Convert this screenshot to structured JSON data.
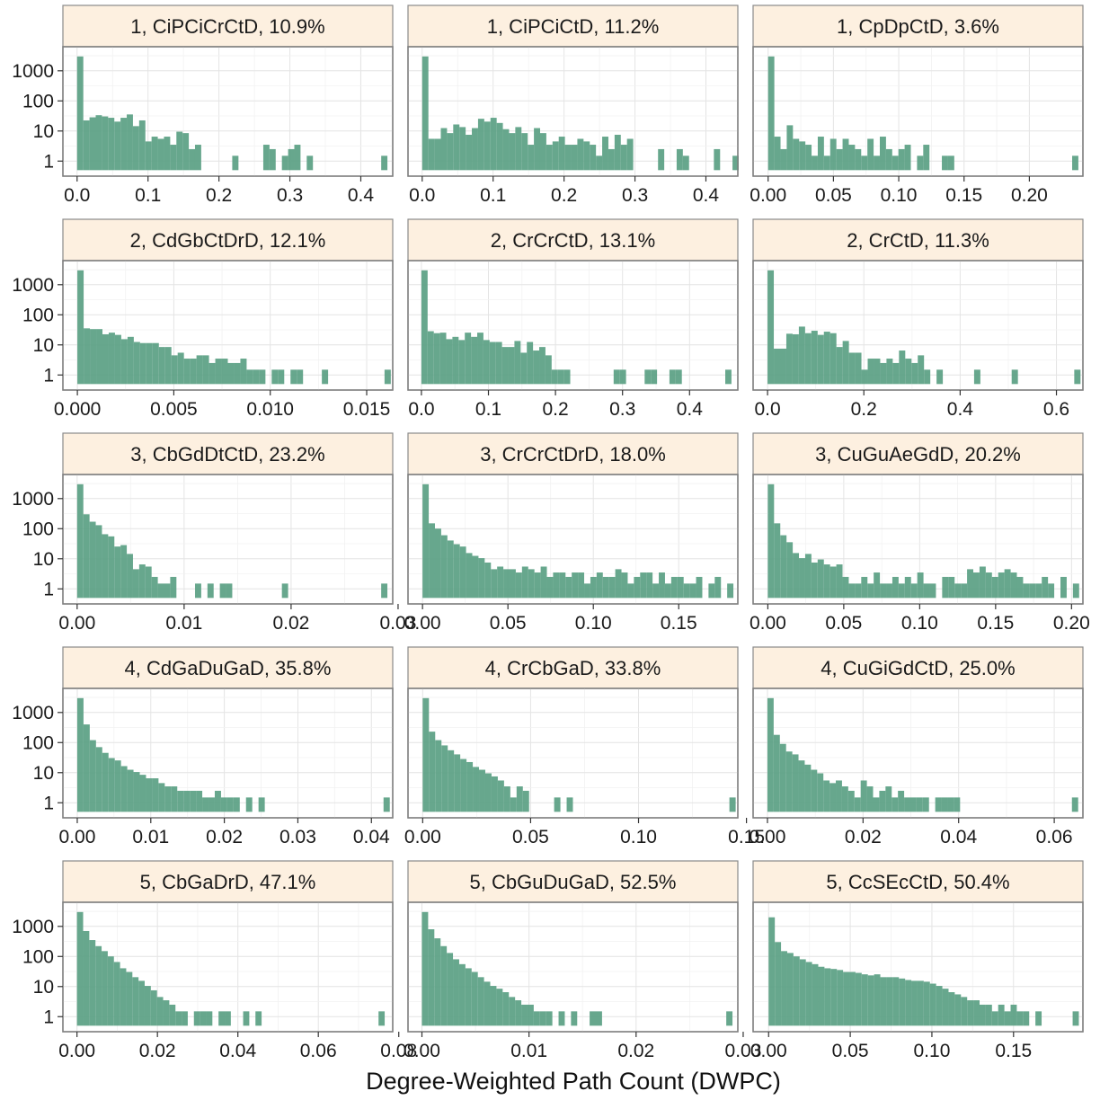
{
  "chart_data": {
    "type": "bar",
    "chart_kind": "faceted histogram",
    "xlabel": "Degree-Weighted Path Count (DWPC)",
    "ylabel": "",
    "y_scale": "log10",
    "y_ticks": [
      1,
      10,
      100,
      1000
    ],
    "y_tick_labels": [
      "1",
      "10",
      "100",
      "1000"
    ],
    "color": "#5aa083",
    "strip_color": "#fdf0e0",
    "grid": true,
    "panels": [
      {
        "title": "1, CiPCiCrCtD, 10.9%",
        "xlim": [
          -0.02,
          0.445
        ],
        "xticks": [
          0.0,
          0.1,
          0.2,
          0.3,
          0.4
        ],
        "xtick_labels": [
          "0.0",
          "0.1",
          "0.2",
          "0.3",
          "0.4"
        ],
        "bin_width": 0.00875,
        "counts": [
          3000,
          22,
          28,
          33,
          30,
          27,
          20,
          27,
          35,
          14,
          22,
          4,
          6,
          5,
          6,
          3,
          9,
          8,
          2,
          3,
          0,
          0,
          0,
          0,
          0,
          1,
          0,
          0,
          0,
          0,
          3,
          2,
          0,
          1,
          2,
          3,
          0,
          1,
          0,
          0,
          0,
          0,
          0,
          0,
          0,
          0,
          0,
          0,
          0,
          1
        ]
      },
      {
        "title": "1, CiPCiCtD, 11.2%",
        "xlim": [
          -0.02,
          0.445
        ],
        "xticks": [
          0.0,
          0.1,
          0.2,
          0.3,
          0.4
        ],
        "xtick_labels": [
          "0.0",
          "0.1",
          "0.2",
          "0.3",
          "0.4"
        ],
        "bin_width": 0.00875,
        "counts": [
          3000,
          5,
          5,
          12,
          8,
          16,
          13,
          7,
          12,
          25,
          20,
          27,
          18,
          11,
          8,
          13,
          8,
          3,
          12,
          8,
          3,
          4,
          6,
          3,
          3,
          5,
          4,
          3,
          1,
          6,
          2,
          7,
          3,
          5,
          0,
          0,
          0,
          0,
          2,
          0,
          0,
          2,
          1,
          0,
          0,
          0,
          0,
          2,
          0,
          0,
          1
        ]
      },
      {
        "title": "1, CpDpCtD, 3.6%",
        "xlim": [
          -0.0115,
          0.241
        ],
        "xticks": [
          0.0,
          0.05,
          0.1,
          0.15,
          0.2
        ],
        "xtick_labels": [
          "0.00",
          "0.05",
          "0.10",
          "0.15",
          "0.20"
        ],
        "bin_width": 0.00475,
        "counts": [
          3000,
          6,
          2,
          15,
          5,
          4,
          3,
          1,
          6,
          1,
          5,
          2,
          5,
          3,
          2,
          1,
          5,
          1,
          6,
          2,
          1,
          2,
          3,
          0,
          1,
          3,
          0,
          0,
          1,
          1,
          0,
          0,
          0,
          0,
          0,
          0,
          0,
          0,
          0,
          0,
          0,
          0,
          0,
          0,
          0,
          0,
          0,
          0,
          0,
          1
        ]
      },
      {
        "title": "2, CdGbCtDrD, 12.1%",
        "xlim": [
          -0.00075,
          0.01635
        ],
        "xticks": [
          0.0,
          0.005,
          0.01,
          0.015
        ],
        "xtick_labels": [
          "0.000",
          "0.005",
          "0.010",
          "0.015"
        ],
        "bin_width": 0.000325,
        "counts": [
          3000,
          35,
          33,
          33,
          22,
          25,
          21,
          15,
          18,
          12,
          11,
          11,
          11,
          8,
          8,
          4,
          5,
          3,
          3,
          4,
          4,
          2,
          3,
          3,
          2,
          2,
          3,
          1,
          1,
          1,
          0,
          1,
          1,
          0,
          1,
          1,
          0,
          0,
          0,
          1,
          0,
          0,
          0,
          0,
          0,
          0,
          0,
          0,
          0,
          1
        ]
      },
      {
        "title": "2, CrCrCtD, 13.1%",
        "xlim": [
          -0.02,
          0.472
        ],
        "xticks": [
          0.0,
          0.1,
          0.2,
          0.3,
          0.4
        ],
        "xtick_labels": [
          "0.0",
          "0.1",
          "0.2",
          "0.3",
          "0.4"
        ],
        "bin_width": 0.00925,
        "counts": [
          3000,
          28,
          24,
          25,
          15,
          18,
          14,
          25,
          18,
          25,
          14,
          12,
          12,
          8,
          8,
          13,
          5,
          12,
          6,
          8,
          4,
          1,
          1,
          1,
          0,
          0,
          0,
          0,
          0,
          0,
          0,
          1,
          1,
          0,
          0,
          0,
          1,
          1,
          0,
          0,
          1,
          1,
          0,
          0,
          0,
          0,
          0,
          0,
          0,
          1
        ]
      },
      {
        "title": "2, CrCtD, 11.3%",
        "xlim": [
          -0.03,
          0.655
        ],
        "xticks": [
          0.0,
          0.2,
          0.4,
          0.6
        ],
        "xtick_labels": [
          "0.0",
          "0.2",
          "0.4",
          "0.6"
        ],
        "bin_width": 0.013,
        "counts": [
          3000,
          7,
          7,
          23,
          22,
          40,
          24,
          29,
          21,
          27,
          24,
          8,
          13,
          5,
          5,
          1,
          3,
          3,
          2,
          3,
          2,
          6,
          3,
          2,
          4,
          1,
          0,
          1,
          0,
          0,
          0,
          0,
          0,
          1,
          0,
          0,
          0,
          0,
          0,
          1,
          0,
          0,
          0,
          0,
          0,
          0,
          0,
          0,
          0,
          1
        ]
      },
      {
        "title": "3, CbGdDtCtD, 23.2%",
        "xlim": [
          -0.00133,
          0.0295
        ],
        "xticks": [
          0.0,
          0.01,
          0.02,
          0.03
        ],
        "xtick_labels": [
          "0.00",
          "0.01",
          "0.02",
          "0.03"
        ],
        "bin_width": 0.00058,
        "counts": [
          3000,
          300,
          170,
          130,
          65,
          55,
          25,
          28,
          14,
          4,
          6,
          5,
          2,
          1,
          1,
          2,
          0,
          0,
          0,
          1,
          0,
          1,
          0,
          1,
          1,
          0,
          0,
          0,
          0,
          0,
          0,
          0,
          0,
          1,
          0,
          0,
          0,
          0,
          0,
          0,
          0,
          0,
          0,
          0,
          0,
          0,
          0,
          0,
          0,
          1
        ]
      },
      {
        "title": "3, CrCrCtDrD, 18.0%",
        "xlim": [
          -0.0085,
          0.1846
        ],
        "xticks": [
          0.0,
          0.05,
          0.1,
          0.15
        ],
        "xtick_labels": [
          "0.00",
          "0.05",
          "0.10",
          "0.15"
        ],
        "bin_width": 0.00364,
        "counts": [
          3000,
          150,
          100,
          60,
          40,
          30,
          25,
          15,
          12,
          10,
          7,
          4,
          5,
          4,
          4,
          3,
          5,
          4,
          3,
          5,
          2,
          3,
          3,
          2,
          3,
          3,
          1,
          2,
          3,
          2,
          2,
          4,
          3,
          1,
          2,
          3,
          3,
          1,
          3,
          1,
          2,
          2,
          1,
          1,
          2,
          0,
          1,
          2,
          0,
          1
        ]
      },
      {
        "title": "3, CuGuAeGdD, 20.2%",
        "xlim": [
          -0.0097,
          0.2075
        ],
        "xticks": [
          0.0,
          0.05,
          0.1,
          0.15,
          0.2
        ],
        "xtick_labels": [
          "0.00",
          "0.05",
          "0.10",
          "0.15",
          "0.20"
        ],
        "bin_width": 0.0041,
        "counts": [
          3000,
          150,
          60,
          35,
          15,
          10,
          14,
          7,
          9,
          6,
          5,
          6,
          2,
          1,
          1,
          2,
          1,
          3,
          1,
          1,
          2,
          1,
          2,
          1,
          3,
          1,
          1,
          0,
          2,
          2,
          1,
          1,
          4,
          3,
          5,
          3,
          2,
          3,
          4,
          3,
          2,
          1,
          1,
          1,
          2,
          1,
          0,
          2,
          0,
          1
        ]
      },
      {
        "title": "4, CdGaDuGaD, 35.8%",
        "xlim": [
          -0.00195,
          0.0429
        ],
        "xticks": [
          0.0,
          0.01,
          0.02,
          0.03,
          0.04
        ],
        "xtick_labels": [
          "0.00",
          "0.01",
          "0.02",
          "0.03",
          "0.04"
        ],
        "bin_width": 0.00085,
        "counts": [
          3000,
          400,
          120,
          70,
          45,
          30,
          25,
          16,
          12,
          10,
          8,
          6,
          6,
          4,
          3,
          3,
          2,
          2,
          2,
          2,
          1,
          1,
          2,
          1,
          1,
          1,
          0,
          1,
          0,
          1,
          0,
          0,
          0,
          0,
          0,
          0,
          0,
          0,
          0,
          0,
          0,
          0,
          0,
          0,
          0,
          0,
          0,
          0,
          0,
          1
        ]
      },
      {
        "title": "4, CrCbGaD, 33.8%",
        "xlim": [
          -0.0068,
          0.146
        ],
        "xticks": [
          0.0,
          0.05,
          0.1,
          0.15
        ],
        "xtick_labels": [
          "0.00",
          "0.05",
          "0.10",
          "0.15"
        ],
        "bin_width": 0.0029,
        "counts": [
          3000,
          230,
          120,
          80,
          55,
          40,
          28,
          22,
          15,
          12,
          9,
          7,
          5,
          3,
          1,
          3,
          2,
          0,
          0,
          0,
          0,
          1,
          0,
          1,
          0,
          0,
          0,
          0,
          0,
          0,
          0,
          0,
          0,
          0,
          0,
          0,
          0,
          0,
          0,
          0,
          0,
          0,
          0,
          0,
          0,
          0,
          0,
          0,
          0,
          1
        ]
      },
      {
        "title": "4, CuGiGdCtD, 25.0%",
        "xlim": [
          -0.003,
          0.066
        ],
        "xticks": [
          0.0,
          0.02,
          0.04,
          0.06
        ],
        "xtick_labels": [
          "0.00",
          "0.02",
          "0.04",
          "0.06"
        ],
        "bin_width": 0.0013,
        "counts": [
          3000,
          180,
          90,
          50,
          40,
          25,
          18,
          12,
          9,
          5,
          4,
          5,
          3,
          2,
          1,
          5,
          3,
          1,
          2,
          3,
          1,
          2,
          1,
          1,
          1,
          1,
          0,
          1,
          1,
          1,
          1,
          0,
          0,
          0,
          0,
          0,
          0,
          0,
          0,
          0,
          0,
          0,
          0,
          0,
          0,
          0,
          0,
          0,
          0,
          1
        ]
      },
      {
        "title": "5, CbGaDrD, 47.1%",
        "xlim": [
          -0.0035,
          0.0785
        ],
        "xticks": [
          0.0,
          0.02,
          0.04,
          0.06,
          0.08
        ],
        "xtick_labels": [
          "0.00",
          "0.02",
          "0.04",
          "0.06",
          "0.08"
        ],
        "bin_width": 0.00153,
        "counts": [
          3000,
          700,
          350,
          220,
          150,
          100,
          65,
          40,
          30,
          20,
          15,
          10,
          7,
          4,
          3,
          2,
          1,
          1,
          0,
          1,
          1,
          1,
          0,
          1,
          1,
          0,
          0,
          1,
          0,
          1,
          0,
          0,
          0,
          0,
          0,
          0,
          0,
          0,
          0,
          0,
          0,
          0,
          0,
          0,
          0,
          0,
          0,
          0,
          0,
          1
        ]
      },
      {
        "title": "5, CbGuDuGaD, 52.5%",
        "xlim": [
          -0.0013,
          0.0295
        ],
        "xticks": [
          0.0,
          0.01,
          0.02,
          0.03
        ],
        "xtick_labels": [
          "0.00",
          "0.01",
          "0.02",
          "0.03"
        ],
        "bin_width": 0.00058,
        "counts": [
          3000,
          800,
          400,
          220,
          130,
          80,
          55,
          40,
          30,
          20,
          14,
          10,
          8,
          6,
          4,
          3,
          2,
          2,
          1,
          1,
          1,
          0,
          1,
          0,
          1,
          0,
          0,
          1,
          1,
          0,
          0,
          0,
          0,
          0,
          0,
          0,
          0,
          0,
          0,
          0,
          0,
          0,
          0,
          0,
          0,
          0,
          0,
          0,
          0,
          1
        ]
      },
      {
        "title": "5, CcSEcCtD, 50.4%",
        "xlim": [
          -0.0095,
          0.1925
        ],
        "xticks": [
          0.0,
          0.05,
          0.1,
          0.15
        ],
        "xtick_labels": [
          "0.00",
          "0.05",
          "0.10",
          "0.15"
        ],
        "bin_width": 0.0038,
        "counts": [
          2000,
          300,
          150,
          130,
          100,
          80,
          65,
          55,
          45,
          40,
          38,
          35,
          30,
          30,
          28,
          25,
          23,
          25,
          20,
          20,
          20,
          18,
          16,
          15,
          15,
          14,
          12,
          10,
          8,
          6,
          5,
          4,
          3,
          3,
          2,
          2,
          1,
          2,
          1,
          2,
          1,
          1,
          0,
          1,
          0,
          0,
          0,
          0,
          0,
          1
        ]
      }
    ]
  }
}
